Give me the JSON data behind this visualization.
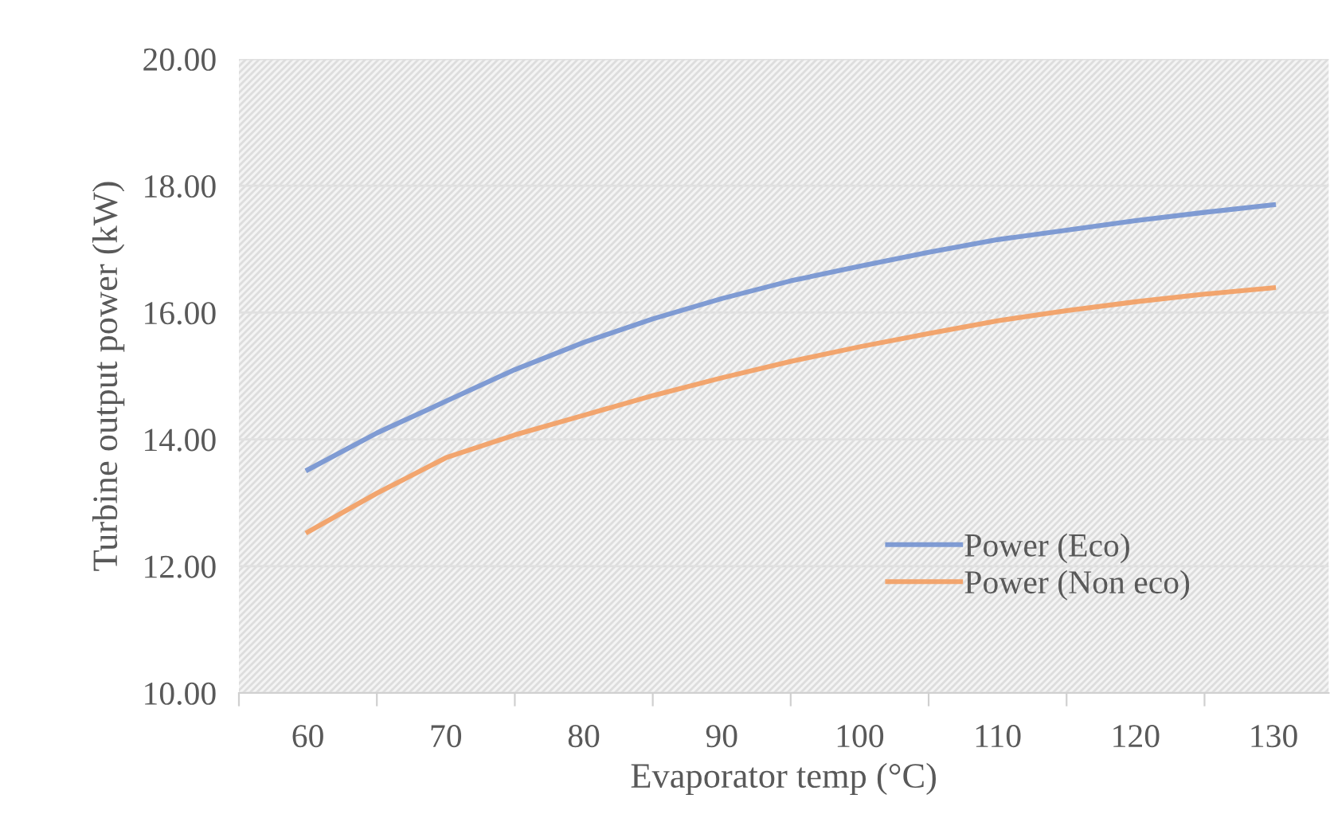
{
  "chart_data": {
    "type": "line",
    "xlabel": "Evaporator temp (°C)",
    "ylabel": "Turbine output power (kW)",
    "x": [
      60,
      65,
      70,
      75,
      80,
      85,
      90,
      95,
      100,
      105,
      110,
      115,
      120,
      125,
      130
    ],
    "series": [
      {
        "name": "Power (Eco)",
        "color": "#7f9bd3",
        "values": [
          13.52,
          14.1,
          14.6,
          15.1,
          15.53,
          15.9,
          16.22,
          16.5,
          16.73,
          16.95,
          17.15,
          17.3,
          17.45,
          17.58,
          17.7
        ]
      },
      {
        "name": "Power (Non eco)",
        "color": "#f2a56e",
        "values": [
          12.54,
          13.15,
          13.71,
          14.07,
          14.38,
          14.69,
          14.97,
          15.23,
          15.46,
          15.67,
          15.87,
          16.03,
          16.17,
          16.29,
          16.39
        ]
      }
    ],
    "xlim": [
      55,
      134
    ],
    "ylim": [
      10,
      20
    ],
    "xticks": [
      {
        "value": 55,
        "label": null
      },
      60,
      {
        "value": 65,
        "label": null
      },
      70,
      {
        "value": 75,
        "label": null
      },
      80,
      {
        "value": 85,
        "label": null
      },
      90,
      {
        "value": 95,
        "label": null
      },
      100,
      {
        "value": 105,
        "label": null
      },
      110,
      {
        "value": 115,
        "label": null
      },
      120,
      {
        "value": 125,
        "label": null
      },
      130
    ],
    "yticks": [
      {
        "value": 10,
        "label": "10.00"
      },
      {
        "value": 12,
        "label": "12.00"
      },
      {
        "value": 14,
        "label": "14.00"
      },
      {
        "value": 16,
        "label": "16.00"
      },
      {
        "value": 18,
        "label": "18.00"
      },
      {
        "value": 20,
        "label": "20.00"
      }
    ],
    "grid": "y",
    "legend": "bottom right",
    "marker": "none",
    "line_style": "solid"
  }
}
